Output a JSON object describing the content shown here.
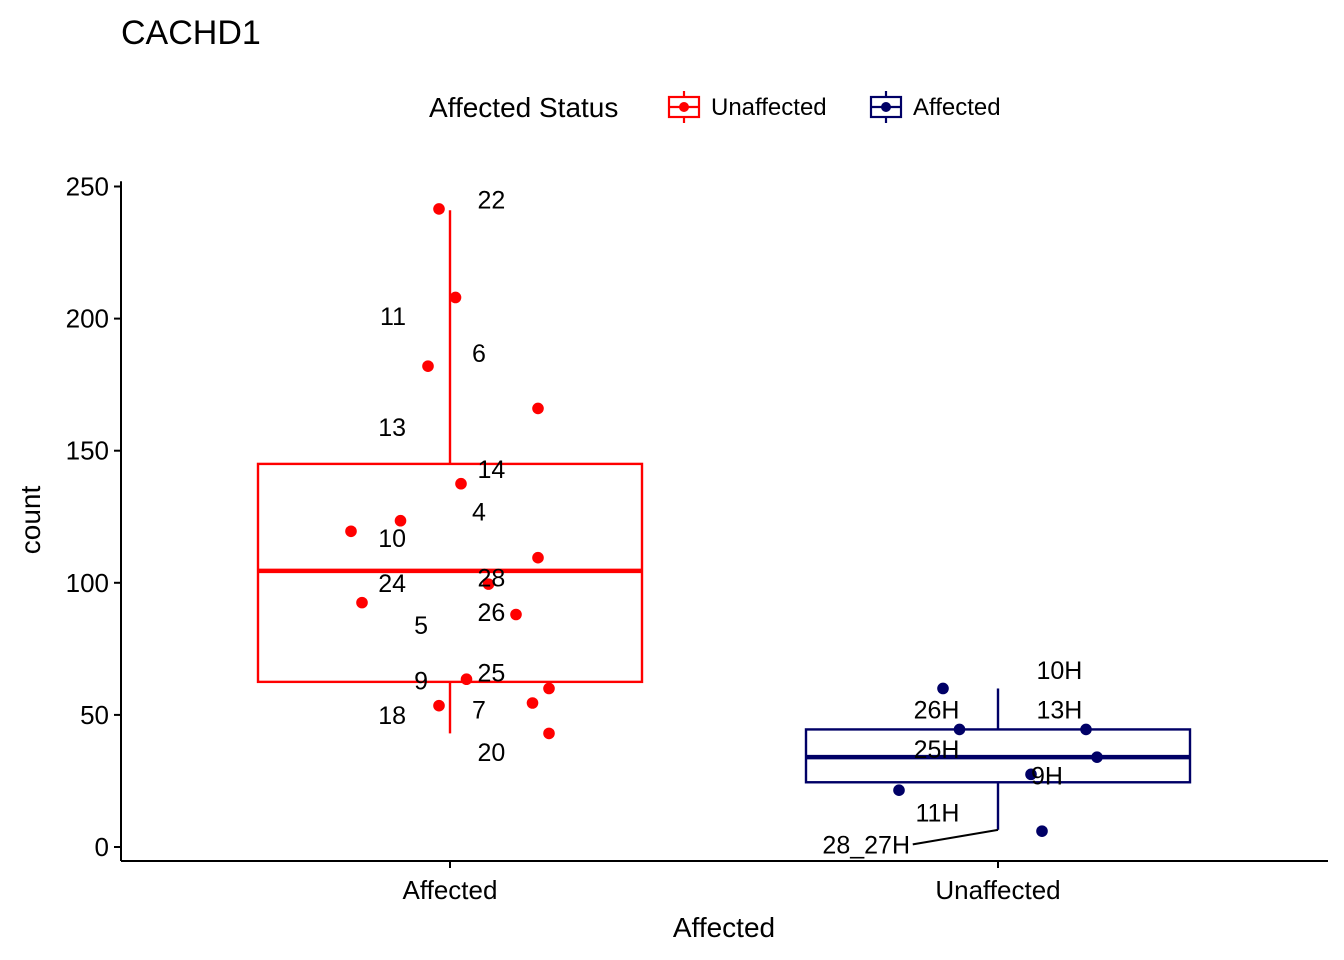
{
  "chart_data": {
    "type": "boxplot",
    "title": "CACHD1",
    "xlabel": "Affected",
    "ylabel": "count",
    "ylim": [
      -5,
      252
    ],
    "yticks": [
      0,
      50,
      100,
      150,
      200,
      250
    ],
    "categories": [
      "Affected",
      "Unaffected"
    ],
    "legend": {
      "title": "Affected Status",
      "position": "top",
      "items": [
        {
          "name": "Unaffected",
          "color": "#ff0000"
        },
        {
          "name": "Affected",
          "color": "#000066"
        }
      ]
    },
    "series": [
      {
        "name": "Unaffected",
        "category": "Affected",
        "color": "#ff0000",
        "box": {
          "whisker_low": 43,
          "q1": 62.5,
          "median": 104.5,
          "q3": 145,
          "whisker_high": 241
        },
        "points": [
          {
            "x": -0.02,
            "y": 241.5
          },
          {
            "x": 0.01,
            "y": 208
          },
          {
            "x": -0.04,
            "y": 182
          },
          {
            "x": 0.16,
            "y": 166
          },
          {
            "x": 0.02,
            "y": 137.5
          },
          {
            "x": -0.09,
            "y": 123.5
          },
          {
            "x": -0.18,
            "y": 119.5
          },
          {
            "x": 0.16,
            "y": 109.5
          },
          {
            "x": 0.07,
            "y": 99.5
          },
          {
            "x": -0.16,
            "y": 92.5
          },
          {
            "x": 0.12,
            "y": 88
          },
          {
            "x": 0.03,
            "y": 63.5
          },
          {
            "x": 0.18,
            "y": 60
          },
          {
            "x": 0.15,
            "y": 54.5
          },
          {
            "x": -0.02,
            "y": 53.5
          },
          {
            "x": 0.18,
            "y": 43
          }
        ],
        "labels": [
          {
            "text": "22",
            "x": 0.05,
            "y": 245
          },
          {
            "text": "11",
            "x": -0.08,
            "y": 201
          },
          {
            "text": "6",
            "x": 0.04,
            "y": 187
          },
          {
            "text": "13",
            "x": -0.08,
            "y": 159
          },
          {
            "text": "14",
            "x": 0.05,
            "y": 143
          },
          {
            "text": "4",
            "x": 0.04,
            "y": 127
          },
          {
            "text": "10",
            "x": -0.08,
            "y": 117
          },
          {
            "text": "28",
            "x": 0.05,
            "y": 102
          },
          {
            "text": "24",
            "x": -0.08,
            "y": 100
          },
          {
            "text": "26",
            "x": 0.05,
            "y": 89
          },
          {
            "text": "5",
            "x": -0.04,
            "y": 84
          },
          {
            "text": "25",
            "x": 0.05,
            "y": 66
          },
          {
            "text": "9",
            "x": -0.04,
            "y": 63
          },
          {
            "text": "7",
            "x": 0.04,
            "y": 52
          },
          {
            "text": "18",
            "x": -0.08,
            "y": 50
          },
          {
            "text": "20",
            "x": 0.05,
            "y": 36
          }
        ]
      },
      {
        "name": "Affected",
        "category": "Unaffected",
        "color": "#000066",
        "box": {
          "whisker_low": 6.5,
          "q1": 24.5,
          "median": 34,
          "q3": 44.5,
          "whisker_high": 60
        },
        "points": [
          {
            "x": -0.1,
            "y": 60
          },
          {
            "x": -0.07,
            "y": 44.5
          },
          {
            "x": 0.16,
            "y": 44.5
          },
          {
            "x": 0.18,
            "y": 34
          },
          {
            "x": 0.06,
            "y": 27.5
          },
          {
            "x": -0.18,
            "y": 21.5
          },
          {
            "x": 0.08,
            "y": 6
          }
        ],
        "labels": [
          {
            "text": "10H",
            "x": 0.07,
            "y": 67
          },
          {
            "text": "26H",
            "x": -0.07,
            "y": 52
          },
          {
            "text": "13H",
            "x": 0.07,
            "y": 52
          },
          {
            "text": "25H",
            "x": -0.07,
            "y": 37
          },
          {
            "text": "9H",
            "x": 0.06,
            "y": 27
          },
          {
            "text": "11H",
            "x": -0.07,
            "y": 13
          },
          {
            "text": "28_27H",
            "x": -0.16,
            "y": 1
          }
        ]
      }
    ]
  }
}
